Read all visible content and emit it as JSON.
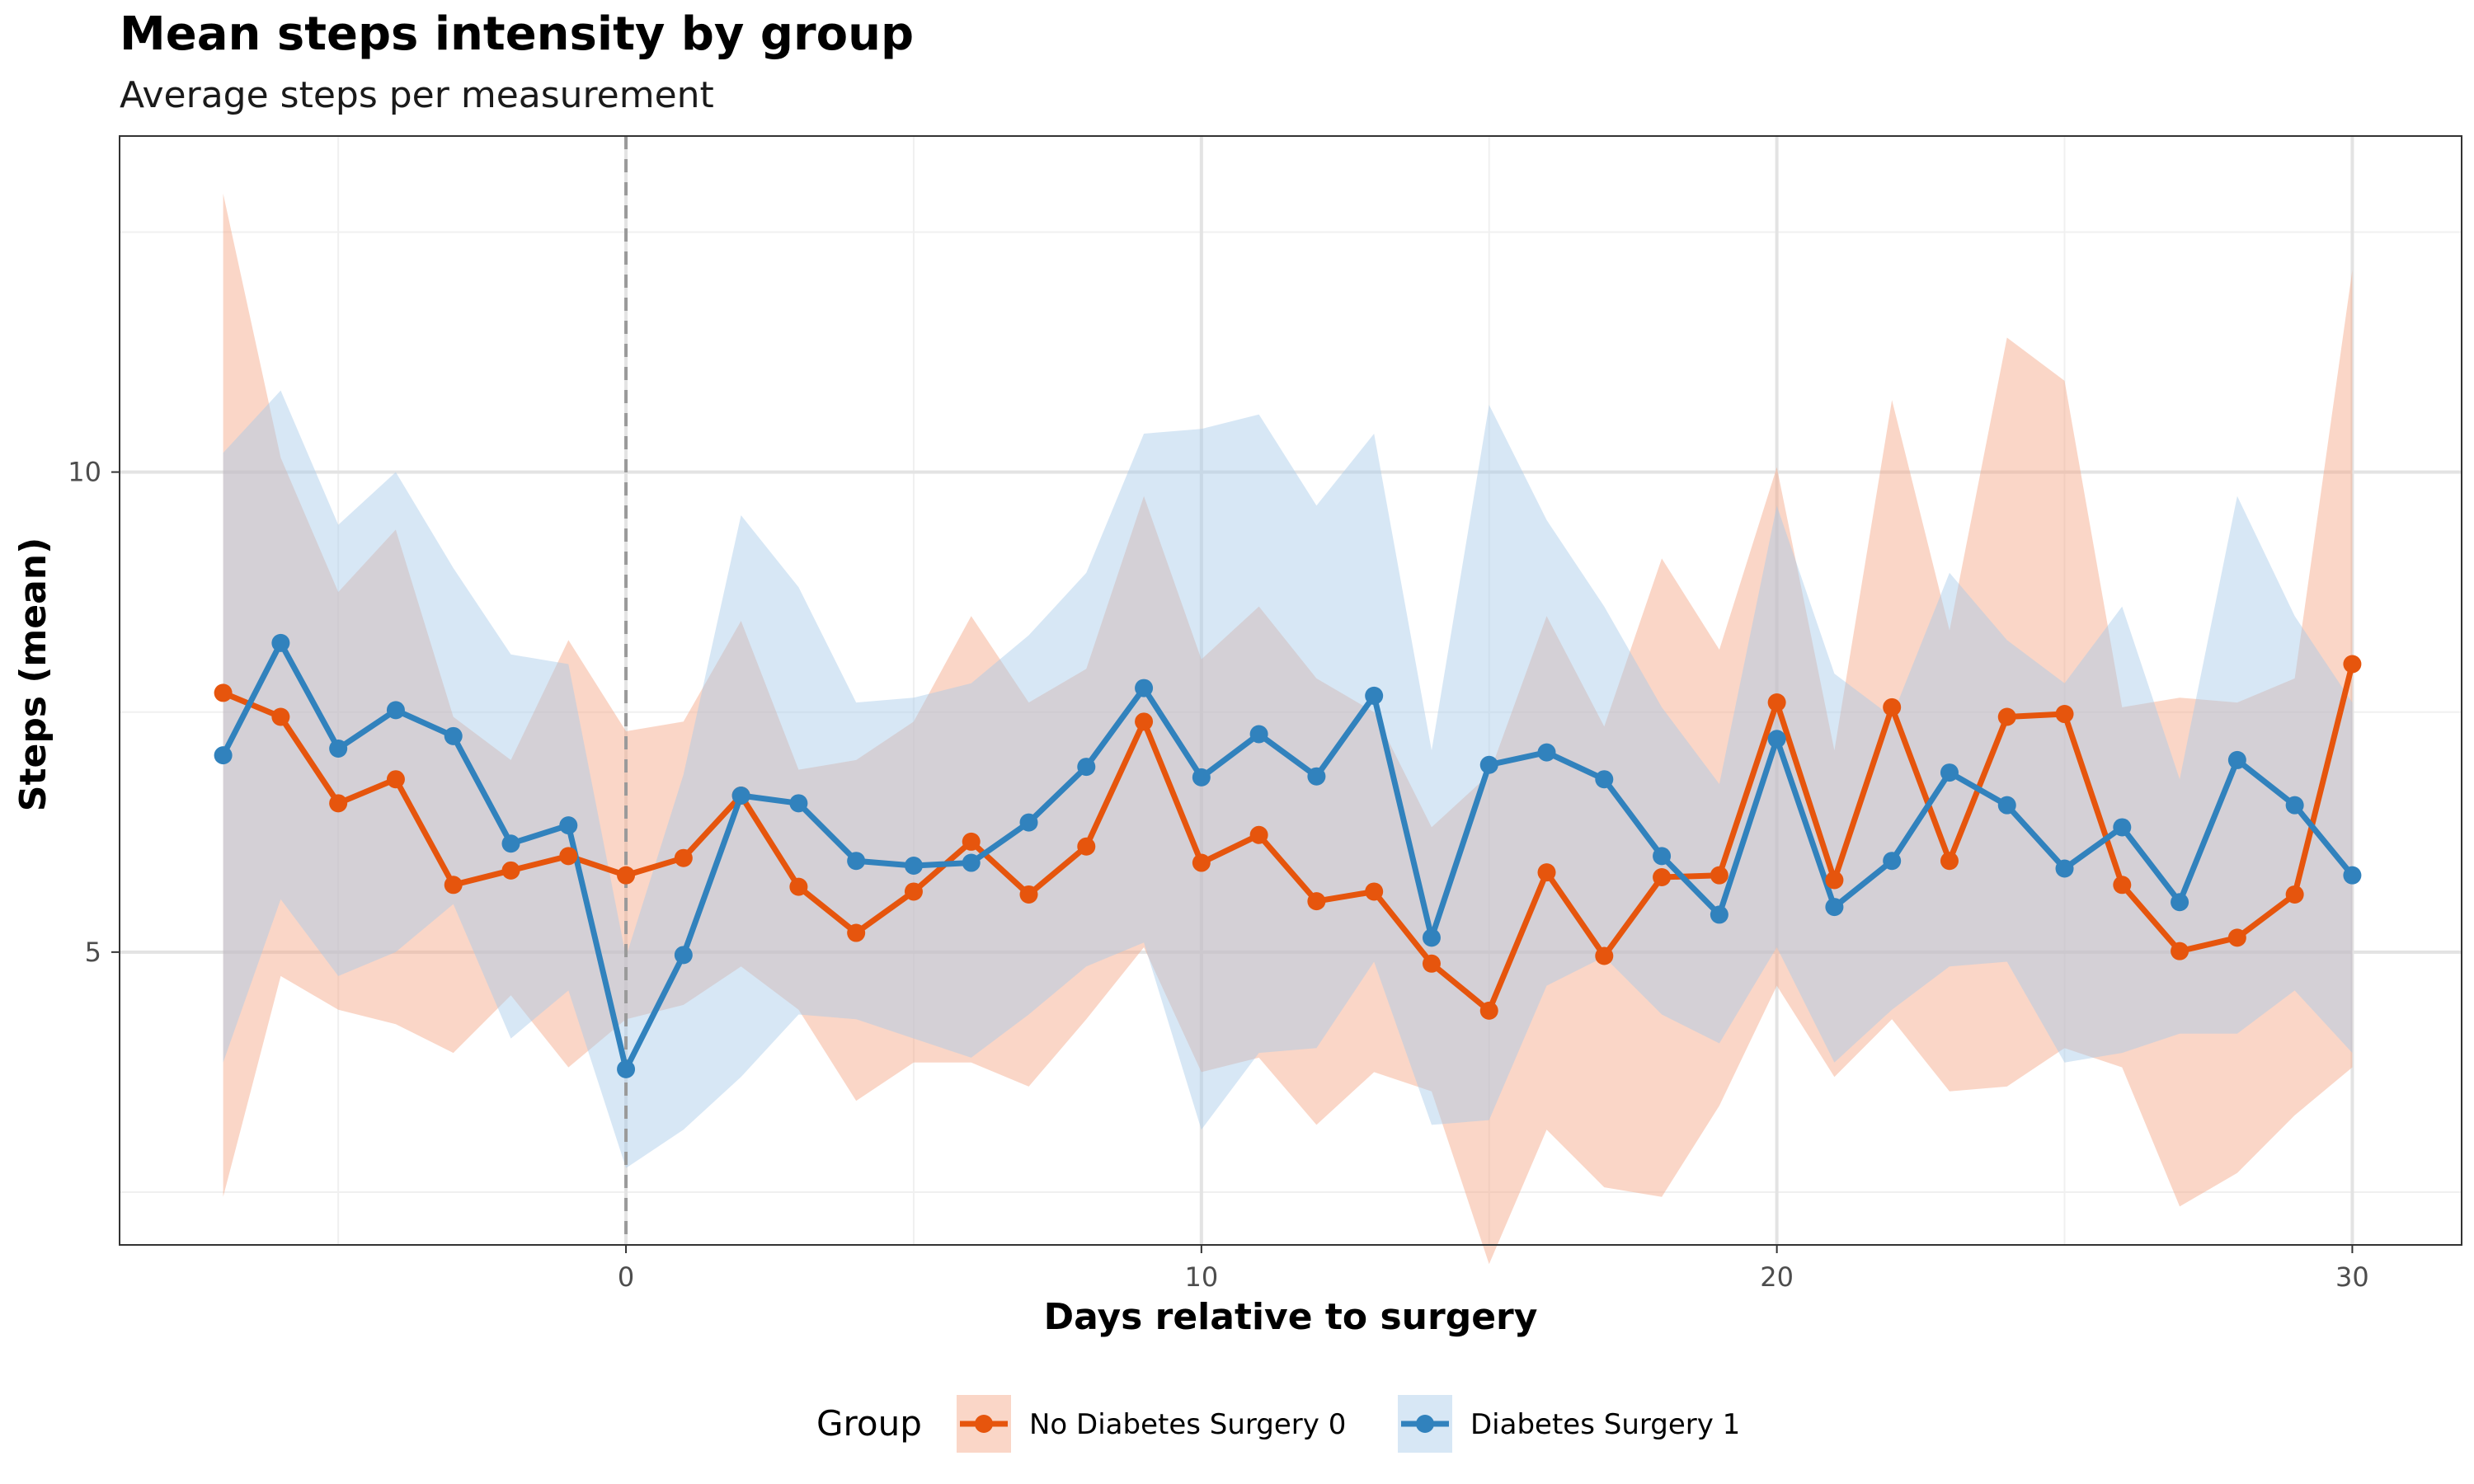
{
  "chart_data": {
    "type": "line",
    "title": "Mean steps intensity by group",
    "subtitle": "Average steps per measurement",
    "xlabel": "Days relative to surgery",
    "ylabel": "Steps (mean)",
    "xlim": [
      -8.8,
      31.9
    ],
    "ylim": [
      1.95,
      13.5
    ],
    "x_ticks": [
      0,
      10,
      20,
      30
    ],
    "y_ticks": [
      5,
      10
    ],
    "grid": true,
    "reference_line": {
      "x": 0,
      "style": "dashed"
    },
    "legend": {
      "title": "Group",
      "position": "bottom"
    },
    "x": [
      -7,
      -6,
      -5,
      -4,
      -3,
      -2,
      -1,
      0,
      1,
      2,
      3,
      4,
      5,
      6,
      7,
      8,
      9,
      10,
      11,
      12,
      13,
      14,
      15,
      16,
      17,
      18,
      19,
      20,
      21,
      22,
      23,
      24,
      25,
      26,
      27,
      28,
      29,
      30
    ],
    "series": [
      {
        "name": "No Diabetes Surgery 0",
        "color": "#E6550D",
        "band_color": "#F4A582",
        "values": [
          7.7,
          7.45,
          6.55,
          6.8,
          5.7,
          5.85,
          6.0,
          5.8,
          5.98,
          6.63,
          5.68,
          5.2,
          5.63,
          6.15,
          5.6,
          6.1,
          7.4,
          5.93,
          6.22,
          5.53,
          5.63,
          4.88,
          4.39,
          5.83,
          4.96,
          5.78,
          5.8,
          7.6,
          5.75,
          7.55,
          5.95,
          7.45,
          7.48,
          5.7,
          5.01,
          5.15,
          5.6,
          8.0
        ],
        "lower": [
          2.45,
          4.75,
          4.4,
          4.25,
          3.95,
          4.55,
          3.8,
          4.3,
          4.45,
          4.85,
          4.4,
          3.45,
          3.85,
          3.85,
          3.6,
          4.3,
          5.05,
          3.75,
          3.9,
          3.2,
          3.75,
          3.55,
          1.75,
          3.15,
          2.55,
          2.45,
          3.4,
          4.65,
          3.7,
          4.3,
          3.55,
          3.6,
          4.0,
          3.8,
          2.35,
          2.7,
          3.3,
          3.8
        ],
        "upper": [
          12.9,
          10.15,
          8.75,
          9.4,
          7.45,
          7.0,
          8.25,
          7.3,
          7.4,
          8.45,
          6.9,
          7.0,
          7.4,
          8.5,
          7.6,
          7.95,
          9.75,
          8.05,
          8.6,
          7.85,
          7.5,
          6.3,
          6.85,
          8.5,
          7.35,
          9.1,
          8.15,
          10.05,
          7.1,
          10.75,
          8.35,
          11.4,
          10.95,
          7.55,
          7.65,
          7.6,
          7.85,
          12.1
        ]
      },
      {
        "name": "Diabetes Surgery 1",
        "color": "#3182BD",
        "band_color": "#A6CAE8",
        "values": [
          7.05,
          8.22,
          7.12,
          7.52,
          7.25,
          6.13,
          6.32,
          3.78,
          4.97,
          6.63,
          6.55,
          5.95,
          5.9,
          5.93,
          6.35,
          6.93,
          7.75,
          6.82,
          7.27,
          6.83,
          7.67,
          5.15,
          6.95,
          7.08,
          6.8,
          6.0,
          5.39,
          7.22,
          5.47,
          5.95,
          6.87,
          6.53,
          5.87,
          6.3,
          5.52,
          7.0,
          6.53,
          5.8
        ],
        "lower": [
          3.85,
          5.55,
          4.75,
          5.0,
          5.5,
          4.1,
          4.6,
          2.75,
          3.15,
          3.7,
          4.35,
          4.3,
          4.1,
          3.9,
          4.35,
          4.85,
          5.1,
          3.15,
          3.95,
          4.0,
          4.9,
          3.2,
          3.25,
          4.65,
          4.95,
          4.35,
          4.05,
          5.05,
          3.85,
          4.4,
          4.85,
          4.9,
          3.85,
          3.95,
          4.15,
          4.15,
          4.6,
          3.95
        ],
        "upper": [
          10.2,
          10.85,
          9.45,
          10.0,
          9.0,
          8.1,
          8.0,
          4.95,
          6.85,
          9.55,
          8.8,
          7.6,
          7.65,
          7.8,
          8.3,
          8.95,
          10.4,
          10.45,
          10.6,
          9.65,
          10.4,
          7.1,
          10.7,
          9.5,
          8.6,
          7.55,
          6.75,
          9.65,
          7.9,
          7.45,
          8.95,
          8.25,
          7.8,
          8.6,
          6.8,
          9.75,
          8.5,
          7.6
        ]
      }
    ]
  }
}
